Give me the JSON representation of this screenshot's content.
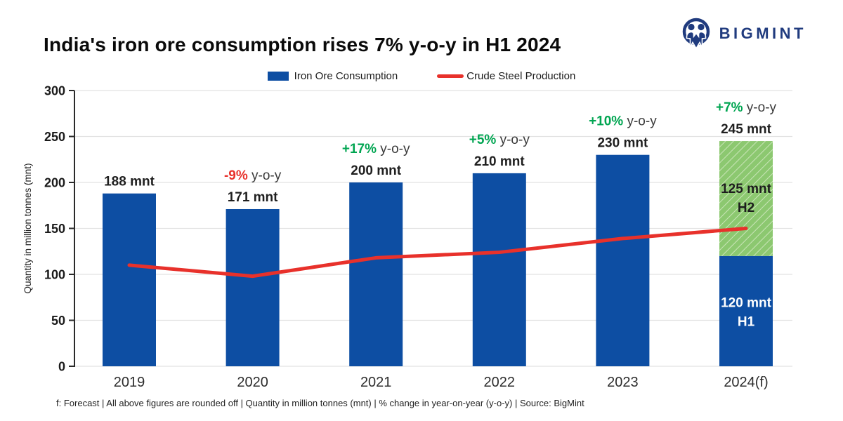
{
  "header": {
    "title": "India's iron ore consumption rises 7% y-o-y in H1 2024",
    "brand": "BIGMINT"
  },
  "legend": {
    "bar_label": "Iron Ore Consumption",
    "line_label": "Crude Steel Production"
  },
  "footer_note": "f: Forecast | All above figures are rounded off | Quantity in million tonnes (mnt) | % change in year-on-year (y-o-y) | Source: BigMint",
  "colors": {
    "bar_blue": "#0d4ea3",
    "line_red": "#e8312b",
    "forecast_green": "#8cc870",
    "hatch_line": "#c9e5b8",
    "positive_green": "#00a551",
    "negative_red": "#e8312b",
    "brand_navy": "#203b7e",
    "grid": "#e2e2e2",
    "axis": "#2a2a2a",
    "text_dark": "#1f1f1f"
  },
  "chart_data": {
    "type": "bar",
    "categories": [
      "2019",
      "2020",
      "2021",
      "2022",
      "2023",
      "2024(f)"
    ],
    "series": [
      {
        "name": "Iron Ore Consumption",
        "type": "bar",
        "values": [
          188,
          171,
          200,
          210,
          230,
          245
        ]
      },
      {
        "name": "Crude Steel Production",
        "type": "line",
        "values": [
          110,
          98,
          118,
          124,
          139,
          150
        ]
      }
    ],
    "bar_labels": [
      "188 mnt",
      "171 mnt",
      "200 mnt",
      "210 mnt",
      "230 mnt",
      "245 mnt"
    ],
    "yoy_labels": [
      null,
      "-9%",
      "+17%",
      "+5%",
      "+10%",
      "+7%"
    ],
    "yoy_signs": [
      null,
      "negative",
      "positive",
      "positive",
      "positive",
      "positive"
    ],
    "yoy_suffix": " y-o-y",
    "forecast_bar": {
      "category": "2024(f)",
      "h1": {
        "value": 120,
        "label": "120 mnt",
        "sublabel": "H1"
      },
      "h2": {
        "value": 125,
        "label": "125 mnt",
        "sublabel": "H2"
      }
    },
    "title": "India's iron ore consumption rises 7% y-o-y in H1 2024",
    "xlabel": "",
    "ylabel": "Quantity in million tonnes (mnt)",
    "ylim": [
      0,
      300
    ],
    "ytick_step": 50,
    "grid": true,
    "legend_position": "top"
  }
}
